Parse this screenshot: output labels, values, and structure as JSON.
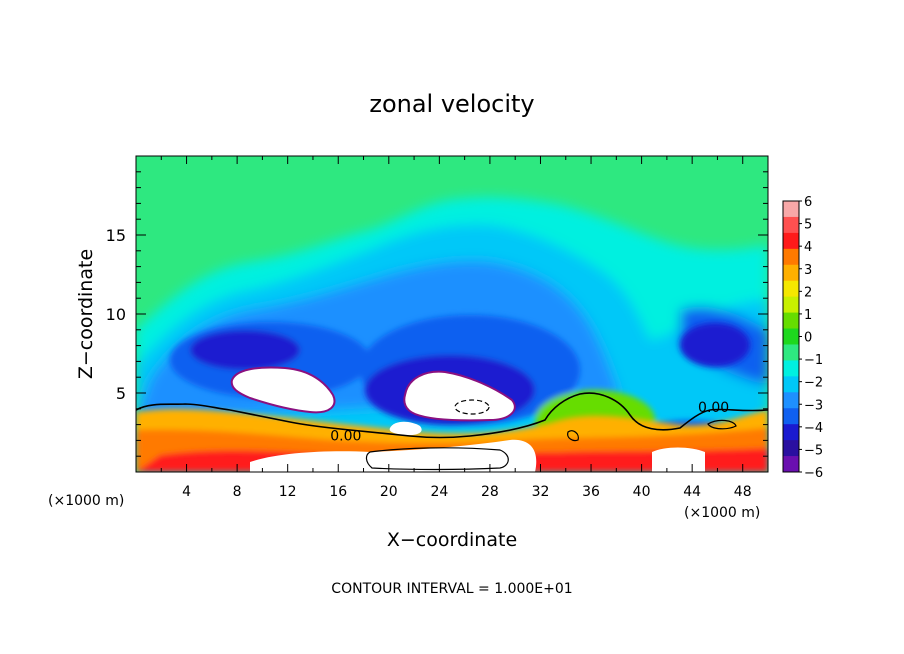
{
  "chart_data": {
    "type": "heatmap",
    "title": "zonal velocity",
    "xlabel": "X−coordinate",
    "ylabel": "Z−coordinate",
    "x_unit_label": "(×1000 m)",
    "x_unit_label_right": "(×1000 m)",
    "xlim": [
      0,
      50
    ],
    "ylim": [
      0,
      20
    ],
    "xticks": [
      4,
      8,
      12,
      16,
      20,
      24,
      28,
      32,
      36,
      40,
      44,
      48
    ],
    "yticks": [
      5,
      10,
      15
    ],
    "footer": "CONTOUR INTERVAL = 1.000E+01",
    "contour_labels": [
      {
        "text": "0.00",
        "x": 16.6,
        "z": 2.3
      },
      {
        "text": "0.00",
        "x": 45.7,
        "z": 4.1
      }
    ],
    "colorbar": {
      "levels": [
        "6",
        "5",
        "4",
        "3",
        "2",
        "1",
        "0",
        "−1",
        "−2",
        "−3",
        "−4",
        "−5",
        "−6"
      ],
      "colors": [
        "#f8a8a8",
        "#ff5050",
        "#ff1a1a",
        "#ff7a00",
        "#ffb000",
        "#f5e800",
        "#c8f000",
        "#66dd00",
        "#1ed81e",
        "#2ee880",
        "#00f0e0",
        "#00c8f8",
        "#1e90ff",
        "#1060f0",
        "#1a1ad0",
        "#2a10a0",
        "#6a10b0"
      ]
    }
  }
}
